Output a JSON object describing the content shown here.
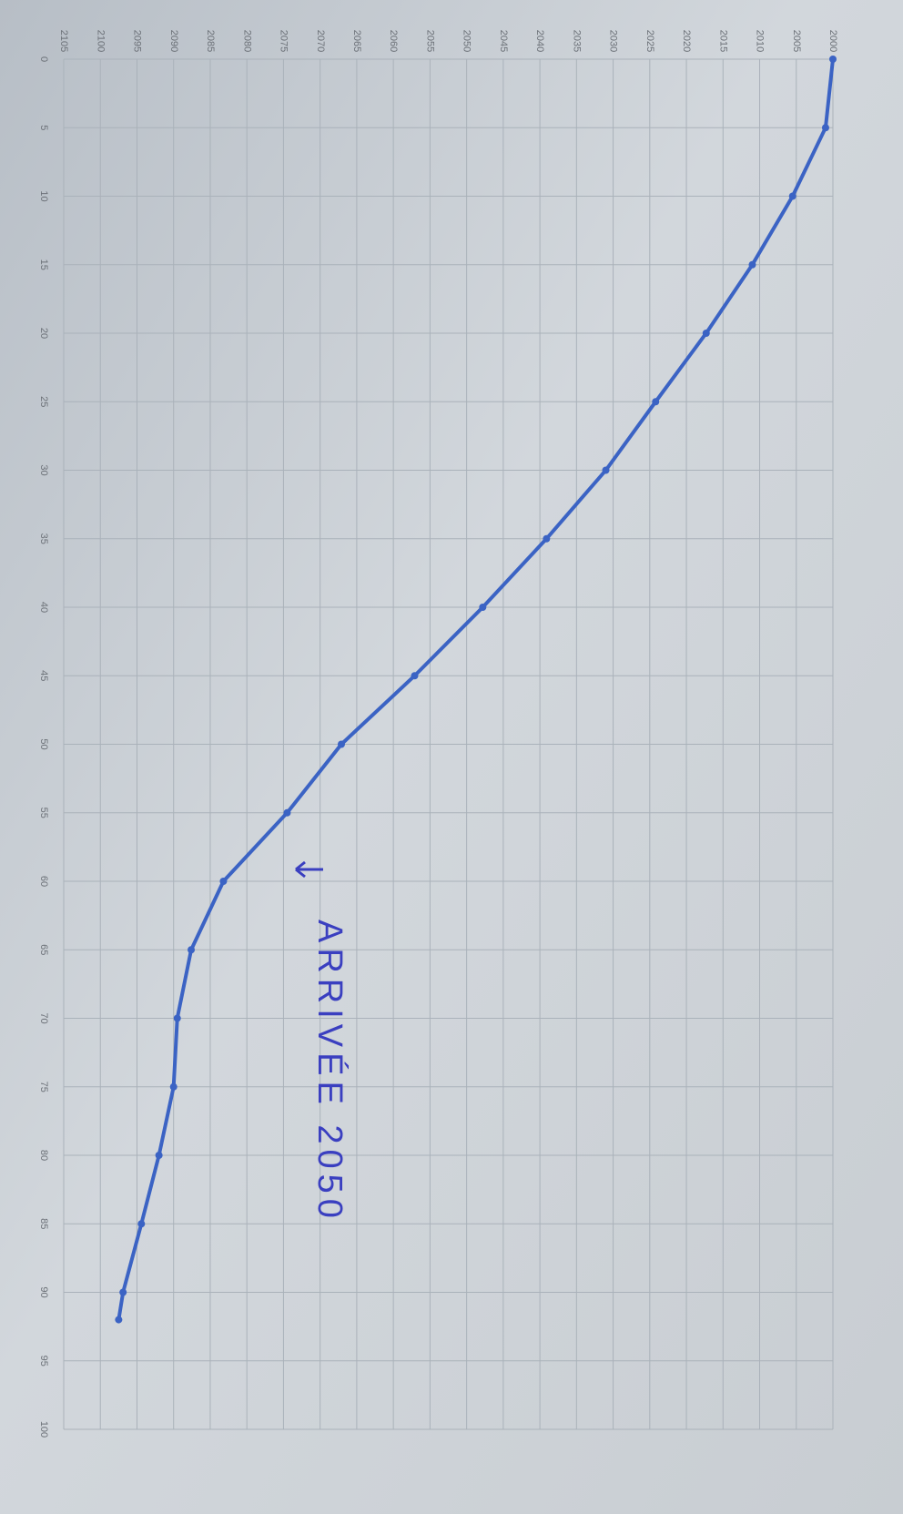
{
  "chart_data": {
    "type": "line",
    "x": [
      0,
      5,
      10,
      15,
      20,
      25,
      30,
      35,
      40,
      45,
      50,
      55,
      60,
      65,
      70,
      75,
      80,
      85,
      90,
      92
    ],
    "series": [
      {
        "color": "#3b63c4",
        "values": [
          2000,
          2001,
          2005.5,
          2011,
          2017.3,
          2024.2,
          2031,
          2039.1,
          2047.8,
          2057.1,
          2067.1,
          2074.5,
          2083.2,
          2087.6,
          2089.5,
          2090,
          2092,
          2094.4,
          2096.9,
          2097.5
        ]
      }
    ],
    "xlim": [
      0,
      100
    ],
    "xticks": [
      0,
      5,
      10,
      15,
      20,
      25,
      30,
      35,
      40,
      45,
      50,
      55,
      60,
      65,
      70,
      75,
      80,
      85,
      90,
      95,
      100
    ],
    "ylim": [
      2105,
      2000
    ],
    "yticks": [
      2105,
      2100,
      2095,
      2090,
      2085,
      2080,
      2075,
      2070,
      2065,
      2060,
      2055,
      2050,
      2045,
      2040,
      2035,
      2030,
      2025,
      2020,
      2015,
      2010,
      2005,
      2000
    ],
    "grid": true,
    "annotation": "ARRIVÉE 2050"
  }
}
